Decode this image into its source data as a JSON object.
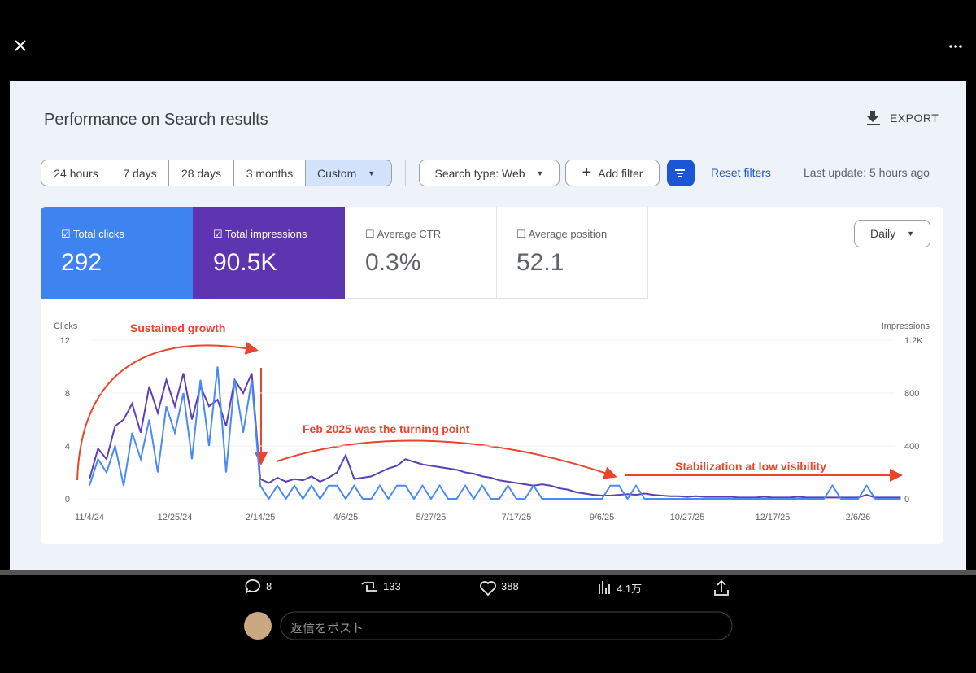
{
  "screenshot": {
    "title": "Performance on Search results",
    "export": "EXPORT",
    "date_ranges": [
      "24 hours",
      "7 days",
      "28 days",
      "3 months",
      "Custom"
    ],
    "search_type": "Search type: Web",
    "add_filter": "Add filter",
    "reset_filters": "Reset filters",
    "last_update": "Last update: 5 hours ago",
    "granularity": "Daily",
    "metrics": [
      {
        "label": "Total clicks",
        "value": "292"
      },
      {
        "label": "Total impressions",
        "value": "90.5K"
      },
      {
        "label": "Average CTR",
        "value": "0.3%"
      },
      {
        "label": "Average position",
        "value": "52.1"
      }
    ]
  },
  "chart_data": {
    "type": "line",
    "ylabel": "Clicks",
    "y2label": "Impressions",
    "annotations": [
      "Sustained growth",
      "Feb 2025 was the turning point",
      "Stabilization at low visibility"
    ],
    "categories": [
      "11/4/24",
      null,
      null,
      null,
      null,
      null,
      null,
      null,
      null,
      null,
      "12/25/24",
      null,
      null,
      null,
      null,
      null,
      null,
      null,
      null,
      null,
      "2/14/25",
      null,
      null,
      null,
      null,
      null,
      null,
      null,
      null,
      null,
      "4/6/25",
      null,
      null,
      null,
      null,
      null,
      null,
      null,
      null,
      null,
      "5/27/25",
      null,
      null,
      null,
      null,
      null,
      null,
      null,
      null,
      null,
      "7/17/25",
      null,
      null,
      null,
      null,
      null,
      null,
      null,
      null,
      null,
      "9/6/25",
      null,
      null,
      null,
      null,
      null,
      null,
      null,
      null,
      null,
      "10/27/25",
      null,
      null,
      null,
      null,
      null,
      null,
      null,
      null,
      null,
      "12/17/25",
      null,
      null,
      null,
      null,
      null,
      null,
      null,
      null,
      null,
      "2/6/26",
      null,
      null,
      null,
      null,
      null
    ],
    "series": [
      {
        "color": "#4a8af4",
        "values": [
          1,
          3,
          2,
          4,
          1,
          5,
          3,
          6,
          2,
          7,
          5,
          8,
          3,
          9,
          4,
          10,
          2,
          9,
          5,
          9,
          1,
          0,
          1,
          0,
          1,
          0,
          1,
          0,
          1,
          1,
          0,
          1,
          0,
          0,
          1,
          0,
          1,
          1,
          0,
          1,
          0,
          1,
          0,
          0,
          1,
          0,
          1,
          0,
          0,
          1,
          0,
          0,
          1,
          0,
          0,
          0,
          0,
          0,
          0,
          0,
          0,
          1,
          1,
          0,
          1,
          0,
          0,
          0,
          0,
          0,
          0,
          0,
          0,
          0,
          0,
          0,
          0,
          0,
          0,
          0,
          0,
          0,
          0,
          0,
          0,
          0,
          0,
          1,
          0,
          0,
          0,
          1,
          0,
          0,
          0,
          0
        ]
      },
      {
        "color": "#5b3fb5",
        "axis": "y2",
        "values": [
          150,
          380,
          300,
          550,
          600,
          720,
          500,
          850,
          650,
          900,
          700,
          950,
          600,
          850,
          700,
          750,
          550,
          900,
          800,
          950,
          150,
          120,
          160,
          130,
          150,
          140,
          170,
          130,
          160,
          200,
          330,
          150,
          160,
          170,
          200,
          230,
          250,
          300,
          280,
          260,
          250,
          240,
          230,
          220,
          200,
          190,
          170,
          160,
          140,
          130,
          120,
          110,
          100,
          110,
          100,
          80,
          70,
          50,
          40,
          30,
          25,
          25,
          30,
          35,
          30,
          40,
          30,
          25,
          20,
          20,
          15,
          20,
          15,
          15,
          15,
          15,
          10,
          10,
          10,
          15,
          10,
          10,
          10,
          15,
          10,
          10,
          10,
          10,
          10,
          10,
          10,
          30,
          10,
          10,
          10,
          10
        ]
      }
    ],
    "ylim": [
      0,
      12
    ],
    "yticks": [
      0,
      4,
      8,
      12
    ],
    "y2lim": [
      0,
      1200
    ],
    "y2ticks": [
      0,
      400,
      800,
      {
        "value": 1200,
        "label": "1.2K"
      }
    ],
    "grid": true
  },
  "post": {
    "replies": "8",
    "reposts": "133",
    "likes": "388",
    "views": "4.1万",
    "reply_placeholder": "返信をポスト"
  }
}
